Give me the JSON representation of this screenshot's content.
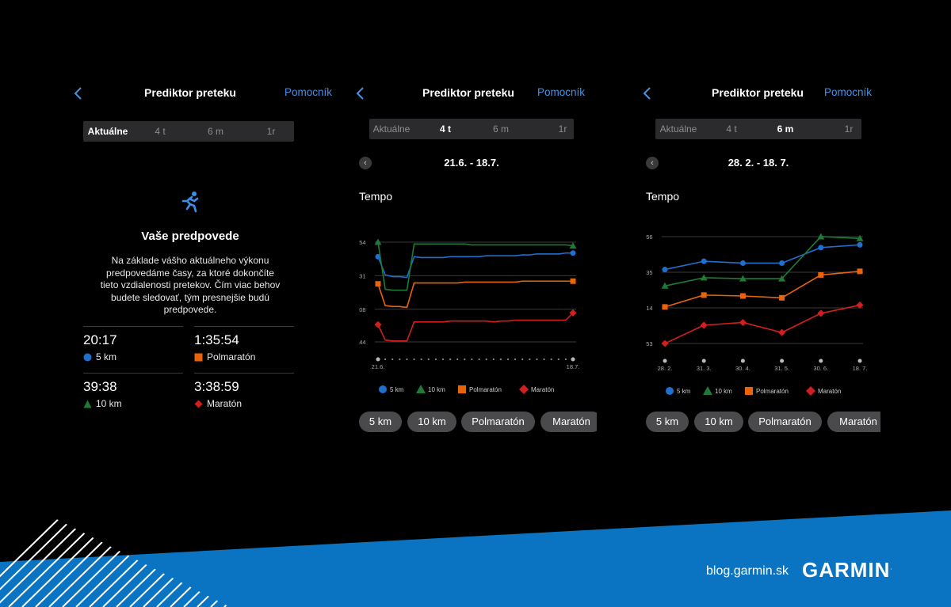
{
  "screens": [
    {
      "back_icon": "chevron-left-icon",
      "title": "Prediktor preteku",
      "helper": "Pomocník",
      "tabs": [
        "Aktuálne",
        "4 t",
        "6 m",
        "1r"
      ],
      "active_tab": 0,
      "icon": "running-person-icon",
      "heading": "Vaše predpovede",
      "description": "Na základe vášho aktuálneho výkonu predpovedáme časy, za ktoré dokončíte tieto vzdialenosti pretekov. Čím viac behov budete sledovať, tým presnejšie budú predpovede.",
      "predictions": [
        {
          "time": "20:17",
          "label": "5 km",
          "marker": "circle",
          "color": "#1f6fd1"
        },
        {
          "time": "1:35:54",
          "label": "Polmaratón",
          "marker": "square",
          "color": "#e8630a"
        },
        {
          "time": "39:38",
          "label": "10 km",
          "marker": "triangle",
          "color": "#1e7a34"
        },
        {
          "time": "3:38:59",
          "label": "Maratón",
          "marker": "diamond",
          "color": "#d11f1f"
        }
      ]
    },
    {
      "back_icon": "chevron-left-icon",
      "title": "Prediktor preteku",
      "helper": "Pomocník",
      "tabs": [
        "Aktuálne",
        "4 t",
        "6 m",
        "1r"
      ],
      "active_tab": 1,
      "date_range": "21.6. - 18.7.",
      "section_title": "Tempo",
      "legend": [
        "5 km",
        "10 km",
        "Polmaratón",
        "Maratón"
      ],
      "chips": [
        "5 km",
        "10 km",
        "Polmaratón",
        "Maratón"
      ]
    },
    {
      "back_icon": "chevron-left-icon",
      "title": "Prediktor preteku",
      "helper": "Pomocník",
      "tabs": [
        "Aktuálne",
        "4 t",
        "6 m",
        "1r"
      ],
      "active_tab": 2,
      "date_range": "28. 2. - 18. 7.",
      "section_title": "Tempo",
      "legend": [
        "5 km",
        "10 km",
        "Polmaratón",
        "Maratón"
      ],
      "chips": [
        "5 km",
        "10 km",
        "Polmaratón",
        "Maratón"
      ]
    }
  ],
  "chart_data": [
    {
      "type": "line",
      "ylabel": "Tempo",
      "y_tick_labels": [
        "3:54",
        "4:31",
        "5:08",
        "5:44"
      ],
      "y_ticks_sec": [
        234,
        271,
        308,
        344
      ],
      "x_tick_labels": [
        "21.6.",
        "18.7."
      ],
      "x_points": 28,
      "series": [
        {
          "name": "5 km",
          "color": "#1f6fd1",
          "marker": "circle",
          "values": [
            250,
            270,
            272,
            272,
            273,
            250,
            251,
            251,
            251,
            251,
            250,
            250,
            250,
            250,
            250,
            249,
            249,
            249,
            249,
            249,
            248,
            248,
            247,
            247,
            247,
            247,
            246,
            246
          ]
        },
        {
          "name": "10 km",
          "color": "#1e7a34",
          "marker": "triangle",
          "values": [
            234,
            286,
            287,
            287,
            287,
            236,
            236,
            236,
            236,
            236,
            236,
            236,
            236,
            237,
            237,
            237,
            237,
            237,
            237,
            237,
            237,
            237,
            237,
            237,
            237,
            237,
            237,
            238
          ]
        },
        {
          "name": "Polmaratón",
          "color": "#e8630a",
          "marker": "square",
          "values": [
            280,
            304,
            305,
            305,
            306,
            279,
            279,
            279,
            279,
            279,
            279,
            279,
            278,
            278,
            278,
            278,
            278,
            278,
            278,
            278,
            277,
            277,
            277,
            277,
            277,
            277,
            277,
            277
          ]
        },
        {
          "name": "Maratón",
          "color": "#d11f1f",
          "marker": "diamond",
          "values": [
            325,
            342,
            343,
            343,
            343,
            322,
            322,
            322,
            322,
            322,
            321,
            321,
            321,
            321,
            321,
            321,
            322,
            321,
            321,
            320,
            320,
            320,
            320,
            320,
            320,
            320,
            320,
            312
          ]
        }
      ]
    },
    {
      "type": "line",
      "ylabel": "Tempo",
      "y_tick_labels": [
        "3:56",
        "4:35",
        "5:14",
        "5:53"
      ],
      "y_ticks_sec": [
        236,
        275,
        314,
        353
      ],
      "x_tick_labels": [
        "28. 2.",
        "31. 3.",
        "30. 4.",
        "31. 5.",
        "30. 6.",
        "18. 7."
      ],
      "series": [
        {
          "name": "5 km",
          "color": "#1f6fd1",
          "marker": "circle",
          "values": [
            272,
            263,
            265,
            265,
            248,
            245
          ]
        },
        {
          "name": "10 km",
          "color": "#1e7a34",
          "marker": "triangle",
          "values": [
            290,
            281,
            282,
            282,
            236,
            238
          ]
        },
        {
          "name": "Polmaratón",
          "color": "#e8630a",
          "marker": "square",
          "values": [
            313,
            300,
            301,
            303,
            278,
            274
          ]
        },
        {
          "name": "Maratón",
          "color": "#d11f1f",
          "marker": "diamond",
          "values": [
            353,
            333,
            330,
            341,
            320,
            311
          ]
        }
      ]
    }
  ],
  "footer": {
    "blog": "blog.garmin.sk",
    "brand": "GARMIN",
    "brand_mark": ".",
    "accent": "#0a74c2"
  }
}
